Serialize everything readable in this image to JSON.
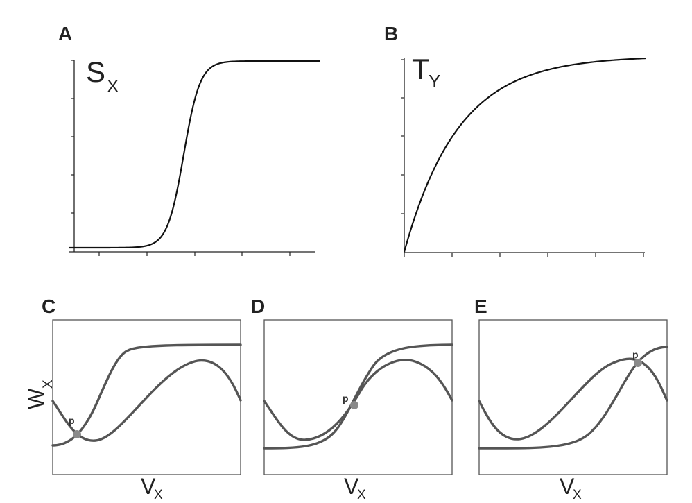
{
  "figure": {
    "panels": [
      {
        "letter": "A",
        "curve_label": "S",
        "curve_sub": "X"
      },
      {
        "letter": "B",
        "curve_label": "T",
        "curve_sub": "Y"
      },
      {
        "letter": "C",
        "y_label": "W",
        "y_sub": "X",
        "x_label": "V",
        "x_sub": "X",
        "point_label": "p"
      },
      {
        "letter": "D",
        "x_label": "V",
        "x_sub": "X",
        "point_label": "p"
      },
      {
        "letter": "E",
        "x_label": "V",
        "x_sub": "X",
        "point_label": "p"
      }
    ]
  },
  "chart_data": [
    {
      "type": "line",
      "panel": "A",
      "series": [
        {
          "name": "S_X",
          "shape": "steep sigmoid",
          "x": [
            0,
            0.5,
            0.75,
            1
          ],
          "y": [
            0,
            0.5,
            1,
            1
          ]
        }
      ],
      "x_ticks": 5,
      "y_ticks": 5,
      "tick_labels": false,
      "grid": false
    },
    {
      "type": "line",
      "panel": "B",
      "series": [
        {
          "name": "T_Y",
          "shape": "saturating exponential",
          "x": [
            0,
            1
          ],
          "y": [
            0,
            1
          ]
        }
      ],
      "x_ticks": 5,
      "y_ticks": 5,
      "tick_labels": false,
      "grid": false
    },
    {
      "type": "line",
      "panel": "C",
      "series": [
        {
          "shape": "sigmoid"
        },
        {
          "shape": "cubic (N-shaped) nullcline"
        }
      ],
      "intersection": {
        "label": "p",
        "position": "low-left"
      }
    },
    {
      "type": "line",
      "panel": "D",
      "series": [
        {
          "shape": "sigmoid"
        },
        {
          "shape": "cubic (N-shaped) nullcline"
        }
      ],
      "intersection": {
        "label": "p",
        "position": "middle"
      }
    },
    {
      "type": "line",
      "panel": "E",
      "series": [
        {
          "shape": "sigmoid"
        },
        {
          "shape": "cubic (N-shaped) nullcline"
        }
      ],
      "intersection": {
        "label": "p",
        "position": "upper-right"
      }
    }
  ]
}
